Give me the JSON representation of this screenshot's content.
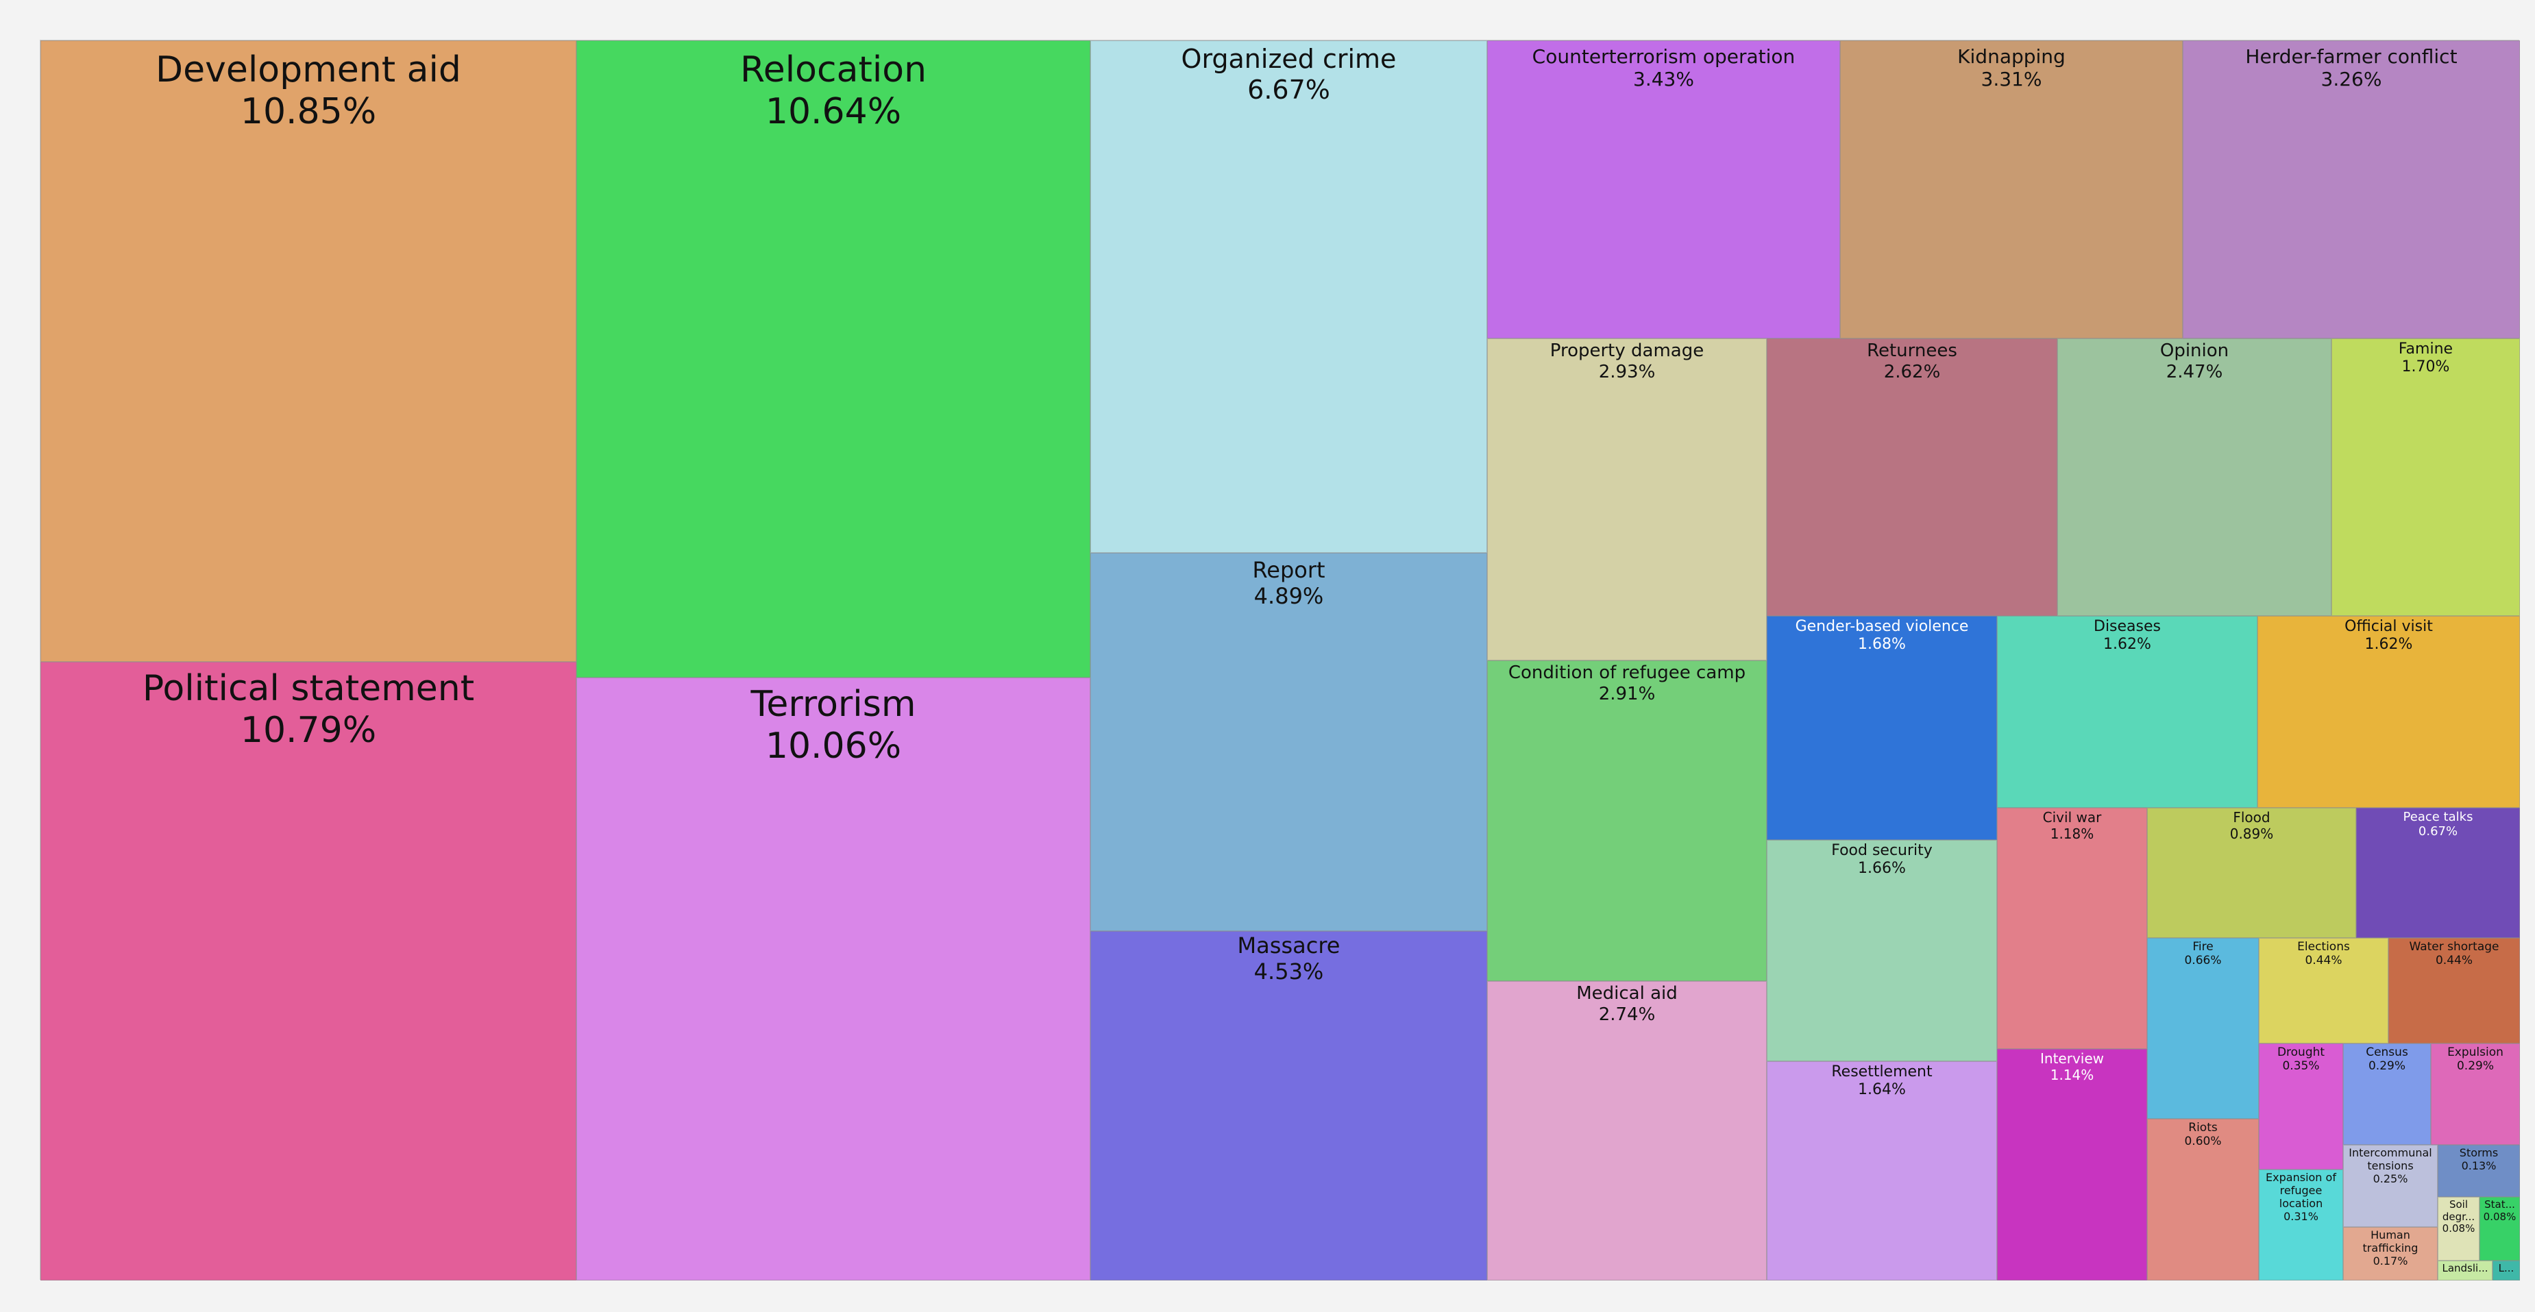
{
  "chart_data": {
    "type": "treemap",
    "items": [
      {
        "label": "Development aid",
        "value": 10.85,
        "value_text": "10.85%",
        "color": "#e0a36a"
      },
      {
        "label": "Political statement",
        "value": 10.79,
        "value_text": "10.79%",
        "color": "#e35e99"
      },
      {
        "label": "Relocation",
        "value": 10.64,
        "value_text": "10.64%",
        "color": "#46d85f"
      },
      {
        "label": "Terrorism",
        "value": 10.06,
        "value_text": "10.06%",
        "color": "#d986e8"
      },
      {
        "label": "Organized crime",
        "value": 6.67,
        "value_text": "6.67%",
        "color": "#b3e1e8"
      },
      {
        "label": "Report",
        "value": 4.89,
        "value_text": "4.89%",
        "color": "#7eb1d4"
      },
      {
        "label": "Massacre",
        "value": 4.53,
        "value_text": "4.53%",
        "color": "#766ee0"
      },
      {
        "label": "Counterterrorism operation",
        "value": 3.43,
        "value_text": "3.43%",
        "color": "#c16ee8"
      },
      {
        "label": "Kidnapping",
        "value": 3.31,
        "value_text": "3.31%",
        "color": "#c89b72"
      },
      {
        "label": "Herder-farmer conflict",
        "value": 3.26,
        "value_text": "3.26%",
        "color": "#b586c3"
      },
      {
        "label": "Property damage",
        "value": 2.93,
        "value_text": "2.93%",
        "color": "#d4d1a6"
      },
      {
        "label": "Condition of refugee camp",
        "value": 2.91,
        "value_text": "2.91%",
        "color": "#74cf79"
      },
      {
        "label": "Medical aid",
        "value": 2.74,
        "value_text": "2.74%",
        "color": "#e1a5ce"
      },
      {
        "label": "Returnees",
        "value": 2.62,
        "value_text": "2.62%",
        "color": "#b87482"
      },
      {
        "label": "Opinion",
        "value": 2.47,
        "value_text": "2.47%",
        "color": "#9cc39e"
      },
      {
        "label": "Famine",
        "value": 1.7,
        "value_text": "1.70%",
        "color": "#bfdb5e"
      },
      {
        "label": "Gender-based violence",
        "value": 1.68,
        "value_text": "1.68%",
        "color": "#2f74d8"
      },
      {
        "label": "Food security",
        "value": 1.66,
        "value_text": "1.66%",
        "color": "#9bd4b3"
      },
      {
        "label": "Resettlement",
        "value": 1.64,
        "value_text": "1.64%",
        "color": "#ca9aec"
      },
      {
        "label": "Diseases",
        "value": 1.62,
        "value_text": "1.62%",
        "color": "#5ad8b8"
      },
      {
        "label": "Official visit",
        "value": 1.62,
        "value_text": "1.62%",
        "color": "#e8b43b"
      },
      {
        "label": "Civil war",
        "value": 1.18,
        "value_text": "1.18%",
        "color": "#e27f8a"
      },
      {
        "label": "Interview",
        "value": 1.14,
        "value_text": "1.14%",
        "color": "#c834c0"
      },
      {
        "label": "Flood",
        "value": 0.89,
        "value_text": "0.89%",
        "color": "#bdcb5e"
      },
      {
        "label": "Peace talks",
        "value": 0.67,
        "value_text": "0.67%",
        "color": "#704cb6"
      },
      {
        "label": "Fire",
        "value": 0.66,
        "value_text": "0.66%",
        "color": "#5bbade"
      },
      {
        "label": "Riots",
        "value": 0.6,
        "value_text": "0.60%",
        "color": "#e08b82"
      },
      {
        "label": "Elections",
        "value": 0.44,
        "value_text": "0.44%",
        "color": "#dcd460"
      },
      {
        "label": "Water shortage",
        "value": 0.44,
        "value_text": "0.44%",
        "color": "#c76c48"
      },
      {
        "label": "Drought",
        "value": 0.35,
        "value_text": "0.35%",
        "color": "#d95cd3"
      },
      {
        "label": "Census",
        "value": 0.29,
        "value_text": "0.29%",
        "color": "#7f9bea"
      },
      {
        "label": "Expulsion",
        "value": 0.29,
        "value_text": "0.29%",
        "color": "#de69b9"
      },
      {
        "label": "Expansion of refugee location",
        "value": 0.31,
        "value_text": "0.31%",
        "color": "#58d9d8"
      },
      {
        "label": "Intercommunal tensions",
        "value": 0.25,
        "value_text": "0.25%",
        "color": "#bcc0dc"
      },
      {
        "label": "Human trafficking",
        "value": 0.17,
        "value_text": "0.17%",
        "color": "#e2a890"
      },
      {
        "label": "Storms",
        "value": 0.13,
        "value_text": "0.13%",
        "color": "#6f8ec6"
      },
      {
        "label": "Soil degr...",
        "value": 0.08,
        "value_text": "0.08%",
        "color": "#dfe3b7"
      },
      {
        "label": "Stat...",
        "value": 0.08,
        "value_text": "0.08%",
        "color": "#37d167"
      },
      {
        "label": "Landsli...",
        "value": null,
        "value_text": "",
        "color": "#c6e9a3"
      },
      {
        "label": "L...",
        "value": null,
        "value_text": "",
        "color": "#3fb8a8"
      }
    ]
  }
}
